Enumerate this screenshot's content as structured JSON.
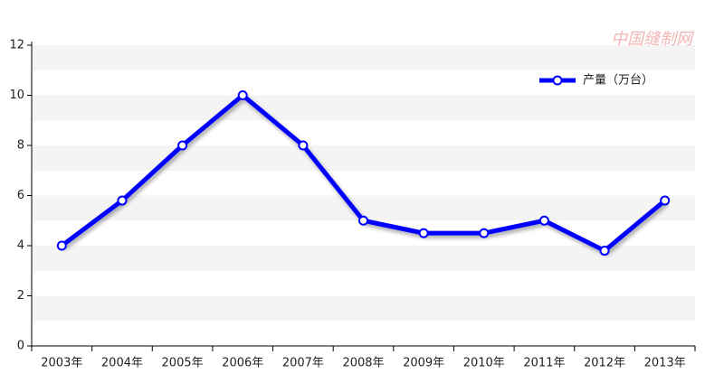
{
  "chart_data": {
    "type": "line",
    "watermark": "中国缝制网",
    "categories": [
      "2003年",
      "2004年",
      "2005年",
      "2006年",
      "2007年",
      "2008年",
      "2009年",
      "2010年",
      "2011年",
      "2012年",
      "2013年"
    ],
    "series": [
      {
        "name": "产量（万台）",
        "color": "#0000ff",
        "values": [
          4,
          5.8,
          8,
          10,
          8,
          5,
          4.5,
          4.5,
          5,
          3.8,
          5.8
        ]
      }
    ],
    "ylim": [
      0,
      12
    ],
    "yticks": [
      0,
      2,
      4,
      6,
      8,
      10,
      12
    ],
    "grid": true,
    "legend": "top-right"
  }
}
